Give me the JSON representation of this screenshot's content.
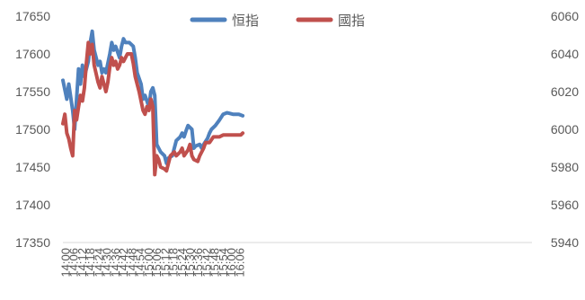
{
  "chart_data": {
    "type": "line",
    "title": "",
    "legend_position": "top-center",
    "grid": false,
    "y_left": {
      "min": 17350,
      "max": 17650,
      "ticks": [
        "17650",
        "17600",
        "17550",
        "17500",
        "17450",
        "17400",
        "17350"
      ]
    },
    "y_right": {
      "min": 5940,
      "max": 6060,
      "ticks": [
        "6060",
        "6040",
        "6020",
        "6000",
        "5980",
        "5960",
        "5940"
      ]
    },
    "x_tick_labels": [
      "14:00",
      "14:06",
      "14:12",
      "14:18",
      "14:24",
      "14:30",
      "14:36",
      "14:42",
      "14:48",
      "14:54",
      "15:00",
      "15:06",
      "15:12",
      "15:18",
      "15:24",
      "15:30",
      "15:36",
      "15:42",
      "15:48",
      "15:54",
      "16:00",
      "16:06"
    ],
    "x_start": "14:00",
    "x_end": "16:06",
    "x_axis_end": "18:00",
    "series": [
      {
        "name": "恒指",
        "axis": "left",
        "color": "#4F81BD",
        "points": [
          [
            "14:00",
            17565
          ],
          [
            "14:02",
            17540
          ],
          [
            "14:03",
            17560
          ],
          [
            "14:05",
            17525
          ],
          [
            "14:06",
            17500
          ],
          [
            "14:08",
            17580
          ],
          [
            "14:09",
            17560
          ],
          [
            "14:10",
            17585
          ],
          [
            "14:11",
            17570
          ],
          [
            "14:13",
            17590
          ],
          [
            "14:14",
            17615
          ],
          [
            "14:15",
            17630
          ],
          [
            "14:16",
            17605
          ],
          [
            "14:18",
            17585
          ],
          [
            "14:19",
            17590
          ],
          [
            "14:20",
            17575
          ],
          [
            "14:21",
            17580
          ],
          [
            "14:22",
            17575
          ],
          [
            "14:24",
            17600
          ],
          [
            "14:25",
            17615
          ],
          [
            "14:26",
            17605
          ],
          [
            "14:27",
            17610
          ],
          [
            "14:29",
            17595
          ],
          [
            "14:30",
            17610
          ],
          [
            "14:31",
            17620
          ],
          [
            "14:32",
            17615
          ],
          [
            "14:34",
            17615
          ],
          [
            "14:36",
            17610
          ],
          [
            "14:37",
            17595
          ],
          [
            "14:38",
            17575
          ],
          [
            "14:40",
            17560
          ],
          [
            "14:41",
            17540
          ],
          [
            "14:42",
            17545
          ],
          [
            "14:44",
            17530
          ],
          [
            "14:45",
            17550
          ],
          [
            "14:46",
            17555
          ],
          [
            "14:47",
            17545
          ],
          [
            "14:48",
            17480
          ],
          [
            "14:49",
            17475
          ],
          [
            "14:50",
            17470
          ],
          [
            "14:52",
            17465
          ],
          [
            "14:53",
            17455
          ],
          [
            "14:54",
            17462
          ],
          [
            "14:56",
            17465
          ],
          [
            "14:57",
            17475
          ],
          [
            "14:58",
            17485
          ],
          [
            "15:00",
            17490
          ],
          [
            "15:01",
            17495
          ],
          [
            "15:02",
            17490
          ],
          [
            "15:03",
            17498
          ],
          [
            "15:04",
            17505
          ],
          [
            "15:06",
            17500
          ],
          [
            "15:07",
            17475
          ],
          [
            "15:08",
            17478
          ],
          [
            "15:10",
            17480
          ],
          [
            "15:11",
            17475
          ],
          [
            "15:12",
            17480
          ],
          [
            "15:14",
            17488
          ],
          [
            "15:15",
            17495
          ],
          [
            "15:16",
            17500
          ],
          [
            "15:18",
            17505
          ],
          [
            "15:20",
            17512
          ],
          [
            "15:22",
            17520
          ],
          [
            "15:24",
            17522
          ],
          [
            "15:27",
            17520
          ],
          [
            "15:30",
            17520
          ],
          [
            "15:32",
            17518
          ]
        ]
      },
      {
        "name": "國指",
        "axis": "right",
        "color": "#C0504D",
        "points": [
          [
            "14:00",
            6003
          ],
          [
            "14:01",
            6008
          ],
          [
            "14:02",
            5998
          ],
          [
            "14:03",
            5995
          ],
          [
            "14:04",
            5990
          ],
          [
            "14:05",
            5986
          ],
          [
            "14:06",
            6010
          ],
          [
            "14:07",
            6005
          ],
          [
            "14:08",
            6012
          ],
          [
            "14:09",
            6018
          ],
          [
            "14:10",
            6015
          ],
          [
            "14:11",
            6022
          ],
          [
            "14:12",
            6035
          ],
          [
            "14:13",
            6046
          ],
          [
            "14:14",
            6040
          ],
          [
            "14:15",
            6045
          ],
          [
            "14:16",
            6034
          ],
          [
            "14:18",
            6025
          ],
          [
            "14:19",
            6022
          ],
          [
            "14:20",
            6028
          ],
          [
            "14:21",
            6024
          ],
          [
            "14:22",
            6020
          ],
          [
            "14:23",
            6025
          ],
          [
            "14:24",
            6033
          ],
          [
            "14:25",
            6038
          ],
          [
            "14:26",
            6034
          ],
          [
            "14:27",
            6036
          ],
          [
            "14:28",
            6032
          ],
          [
            "14:29",
            6034
          ],
          [
            "14:30",
            6038
          ],
          [
            "14:31",
            6036
          ],
          [
            "14:33",
            6040
          ],
          [
            "14:35",
            6040
          ],
          [
            "14:36",
            6035
          ],
          [
            "14:37",
            6028
          ],
          [
            "14:39",
            6020
          ],
          [
            "14:41",
            6010
          ],
          [
            "14:42",
            6008
          ],
          [
            "14:43",
            6012
          ],
          [
            "14:44",
            6010
          ],
          [
            "14:45",
            6016
          ],
          [
            "14:46",
            6012
          ],
          [
            "14:47",
            5976
          ],
          [
            "14:48",
            5986
          ],
          [
            "14:49",
            5984
          ],
          [
            "14:50",
            5980
          ],
          [
            "14:52",
            5979
          ],
          [
            "14:53",
            5978
          ],
          [
            "14:54",
            5982
          ],
          [
            "14:55",
            5986
          ],
          [
            "14:57",
            5988
          ],
          [
            "14:58",
            5986
          ],
          [
            "15:00",
            5988
          ],
          [
            "15:01",
            5990
          ],
          [
            "15:02",
            5986
          ],
          [
            "15:04",
            5989
          ],
          [
            "15:05",
            5992
          ],
          [
            "15:06",
            5986
          ],
          [
            "15:07",
            5984
          ],
          [
            "15:09",
            5983
          ],
          [
            "15:10",
            5986
          ],
          [
            "15:12",
            5990
          ],
          [
            "15:13",
            5993
          ],
          [
            "15:15",
            5993
          ],
          [
            "15:17",
            5996
          ],
          [
            "15:19",
            5996
          ],
          [
            "15:20",
            5996
          ],
          [
            "15:22",
            5997
          ],
          [
            "15:24",
            5997
          ],
          [
            "15:26",
            5997
          ],
          [
            "15:28",
            5997
          ],
          [
            "15:29",
            5997
          ],
          [
            "15:31",
            5997
          ],
          [
            "15:32",
            5998
          ]
        ]
      }
    ]
  }
}
